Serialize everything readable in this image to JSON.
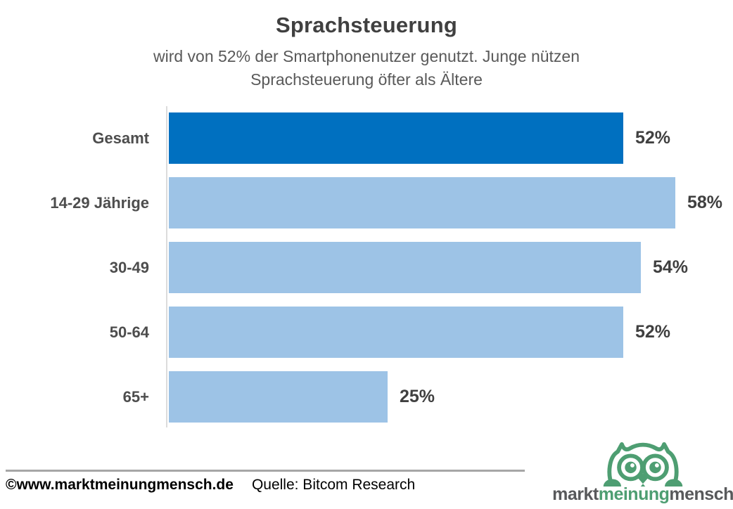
{
  "header": {
    "title": "Sprachsteuerung",
    "subtitle_line1": "wird von 52% der Smartphonenutzer genutzt. Junge nützen",
    "subtitle_line2": "Sprachsteuerung öfter als Ältere"
  },
  "chart_data": {
    "type": "bar",
    "orientation": "horizontal",
    "title": "Sprachsteuerung",
    "categories": [
      "Gesamt",
      "14-29 Jährige",
      "30-49",
      "50-64",
      "65+"
    ],
    "values": [
      52,
      58,
      54,
      52,
      25
    ],
    "value_labels": [
      "52%",
      "58%",
      "54%",
      "52%",
      "25%"
    ],
    "unit": "%",
    "xlim": [
      0,
      62
    ],
    "grid": false,
    "legend": "none",
    "bar_colors": [
      "#0070c0",
      "#9dc3e6",
      "#9dc3e6",
      "#9dc3e6",
      "#9dc3e6"
    ],
    "highlight_color": "#0070c0",
    "default_color": "#9dc3e6",
    "axis_line_color": "#dcdcdc"
  },
  "footer": {
    "copyright": "©www.marktmeinungmensch.de",
    "source": "Quelle: Bitcom Research"
  },
  "logo": {
    "owl_icon": "owl-icon",
    "word_part1": "markt",
    "word_part2": "meinung",
    "word_part3": "mensch",
    "green": "#4e9e72",
    "gray": "#58595b"
  }
}
